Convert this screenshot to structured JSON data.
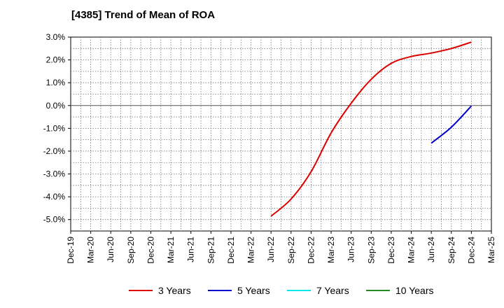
{
  "chart_data": {
    "type": "line",
    "title": "[4385]  Trend of Mean of ROA",
    "xlabel": "",
    "ylabel": "",
    "categories": [
      "Dec-19",
      "Mar-20",
      "Jun-20",
      "Sep-20",
      "Dec-20",
      "Mar-21",
      "Jun-21",
      "Sep-21",
      "Dec-21",
      "Mar-22",
      "Jun-22",
      "Sep-22",
      "Dec-22",
      "Mar-23",
      "Jun-23",
      "Sep-23",
      "Dec-23",
      "Mar-24",
      "Jun-24",
      "Sep-24",
      "Dec-24",
      "Mar-25"
    ],
    "ylim": [
      -5.5,
      3.0
    ],
    "yticks": [
      3.0,
      2.0,
      1.0,
      0.0,
      -1.0,
      -2.0,
      -3.0,
      -4.0,
      -5.0
    ],
    "ytick_labels": [
      "3.0%",
      "2.0%",
      "1.0%",
      "0.0%",
      "-1.0%",
      "-2.0%",
      "-3.0%",
      "-4.0%",
      "-5.0%"
    ],
    "grid": true,
    "legend_position": "bottom",
    "series": [
      {
        "name": "3 Years",
        "color": "#dd0000",
        "points": [
          [
            "Jun-22",
            -4.85
          ],
          [
            "Sep-22",
            -4.1
          ],
          [
            "Dec-22",
            -2.9
          ],
          [
            "Mar-23",
            -1.2
          ],
          [
            "Jun-23",
            0.1
          ],
          [
            "Sep-23",
            1.15
          ],
          [
            "Dec-23",
            1.85
          ],
          [
            "Mar-24",
            2.15
          ],
          [
            "Jun-24",
            2.3
          ],
          [
            "Sep-24",
            2.5
          ],
          [
            "Dec-24",
            2.78
          ]
        ]
      },
      {
        "name": "5 Years",
        "color": "#0000cc",
        "points": [
          [
            "Jun-24",
            -1.65
          ],
          [
            "Sep-24",
            -0.95
          ],
          [
            "Dec-24",
            -0.02
          ]
        ]
      },
      {
        "name": "7 Years",
        "color": "#00e5ee",
        "points": []
      },
      {
        "name": "10 Years",
        "color": "#228b22",
        "points": []
      }
    ]
  }
}
